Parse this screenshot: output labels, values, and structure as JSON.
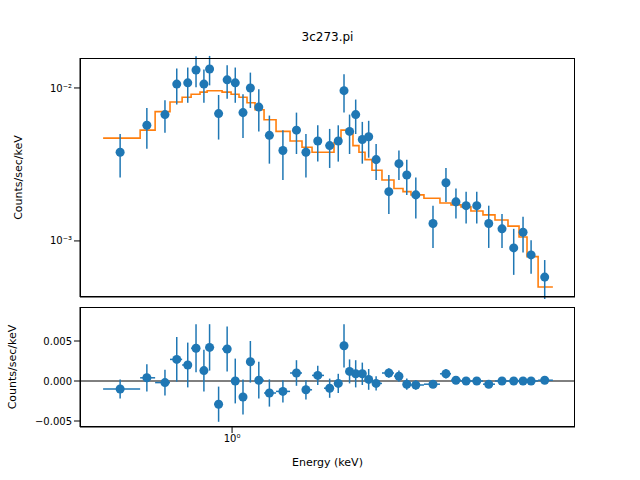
{
  "chart_data": [
    {
      "type": "scatter",
      "title": "3c273.pi",
      "y_label": "Counts/sec/keV",
      "log": true,
      "tick_labels": "y",
      "xlim": [
        0.39,
        8.36
      ],
      "ylim": [
        0.00043,
        0.0157
      ],
      "xticks": [
        {
          "value": 1,
          "label": "10⁰"
        }
      ],
      "yticks": [
        {
          "value": 0.001,
          "label": "10⁻³"
        },
        {
          "value": 0.01,
          "label": "10⁻²"
        }
      ],
      "x": [
        0.5,
        0.59,
        0.66,
        0.71,
        0.76,
        0.8,
        0.84,
        0.87,
        0.92,
        0.97,
        1.02,
        1.07,
        1.12,
        1.18,
        1.26,
        1.37,
        1.49,
        1.58,
        1.7,
        1.83,
        1.93,
        2.0,
        2.07,
        2.15,
        2.24,
        2.33,
        2.44,
        2.64,
        2.81,
        2.95,
        3.12,
        3.47,
        3.76,
        4.0,
        4.26,
        4.55,
        4.9,
        5.32,
        5.72,
        6.06,
        6.37,
        6.93
      ],
      "series": [
        {
          "type": "scatter",
          "color": "#1f77b4",
          "marker": "circle",
          "values": [
            0.0038,
            0.0057,
            0.0067,
            0.0106,
            0.0108,
            0.0131,
            0.0106,
            0.0133,
            0.0068,
            0.0113,
            0.0108,
            0.0069,
            0.01,
            0.0075,
            0.0049,
            0.0039,
            0.0053,
            0.0038,
            0.0045,
            0.0042,
            0.0045,
            0.0096,
            0.0052,
            0.0067,
            0.0046,
            0.0048,
            0.0034,
            0.0021,
            0.0032,
            0.0027,
            0.002,
            0.0013,
            0.0024,
            0.0018,
            0.0017,
            0.0017,
            0.0013,
            0.0012,
            0.0009,
            0.00114,
            0.00081,
            0.00058
          ],
          "errors": [
            0.0012,
            0.0017,
            0.0016,
            0.0028,
            0.0028,
            0.003,
            0.0026,
            0.0029,
            0.0022,
            0.0028,
            0.0028,
            0.0022,
            0.0026,
            0.0023,
            0.0017,
            0.0014,
            0.0016,
            0.0012,
            0.0012,
            0.0012,
            0.0012,
            0.0027,
            0.0015,
            0.0017,
            0.0014,
            0.0013,
            0.0009,
            0.0006,
            0.0007,
            0.0007,
            0.0006,
            0.0004,
            0.0006,
            0.0004,
            0.0004,
            0.0004,
            0.0004,
            0.0003,
            0.0003,
            0.0003,
            0.0002,
            0.00017
          ]
        },
        {
          "type": "line",
          "line_style": "steps",
          "color": "#ff7f0e",
          "bin_edges": [
            0.45,
            0.566,
            0.621,
            0.681,
            0.734,
            0.776,
            0.82,
            0.857,
            0.895,
            0.94,
            0.994,
            1.044,
            1.097,
            1.153,
            1.219,
            1.313,
            1.432,
            1.542,
            1.641,
            1.767,
            1.88,
            1.963,
            2.037,
            2.114,
            2.194,
            2.278,
            2.378,
            2.53,
            2.725,
            2.882,
            3.028,
            3.281,
            3.623,
            3.879,
            4.128,
            4.388,
            4.729,
            5.094,
            5.521,
            5.912,
            6.211,
            6.653,
            7.29
          ],
          "values": [
            0.0047,
            0.0053,
            0.007,
            0.0081,
            0.0087,
            0.0091,
            0.0094,
            0.0096,
            0.0096,
            0.0094,
            0.0091,
            0.0087,
            0.008,
            0.0072,
            0.0062,
            0.0052,
            0.0045,
            0.0041,
            0.0038,
            0.0038,
            0.0044,
            0.0053,
            0.0051,
            0.0042,
            0.0038,
            0.0034,
            0.0029,
            0.0025,
            0.0022,
            0.0021,
            0.002,
            0.0019,
            0.00177,
            0.00172,
            0.00167,
            0.00157,
            0.00148,
            0.00137,
            0.00125,
            0.00106,
            0.00079,
            0.0005
          ]
        }
      ]
    },
    {
      "type": "scatter",
      "x_label": "Energy (keV)",
      "y_label": "Counts/sec/keV",
      "log": "x",
      "xlim": [
        0.39,
        8.36
      ],
      "ylim": [
        -0.00575,
        0.00925
      ],
      "xticks": [
        {
          "value": 1,
          "label": "10⁰"
        }
      ],
      "yticks": [
        {
          "value": -0.005,
          "label": "−0.005"
        },
        {
          "value": 0,
          "label": "0.000"
        },
        {
          "value": 0.005,
          "label": "0.005"
        }
      ],
      "x": [
        0.5,
        0.59,
        0.66,
        0.71,
        0.76,
        0.8,
        0.84,
        0.87,
        0.92,
        0.97,
        1.02,
        1.07,
        1.12,
        1.18,
        1.26,
        1.37,
        1.49,
        1.58,
        1.7,
        1.83,
        1.93,
        2.0,
        2.07,
        2.15,
        2.24,
        2.33,
        2.44,
        2.64,
        2.81,
        2.95,
        3.12,
        3.47,
        3.76,
        4.0,
        4.26,
        4.55,
        4.9,
        5.32,
        5.72,
        6.06,
        6.37,
        6.93
      ],
      "bin_edges": [
        0.45,
        0.566,
        0.621,
        0.681,
        0.734,
        0.776,
        0.82,
        0.857,
        0.895,
        0.94,
        0.994,
        1.044,
        1.097,
        1.153,
        1.219,
        1.313,
        1.432,
        1.542,
        1.641,
        1.767,
        1.88,
        1.963,
        2.037,
        2.114,
        2.194,
        2.278,
        2.378,
        2.53,
        2.725,
        2.882,
        3.028,
        3.281,
        3.623,
        3.879,
        4.128,
        4.388,
        4.729,
        5.094,
        5.521,
        5.912,
        6.211,
        6.653,
        7.29
      ],
      "series": [
        {
          "type": "scatter",
          "color": "#1f77b4",
          "marker": "circle",
          "values": [
            -0.001,
            0.0004,
            -0.0002,
            0.0027,
            0.002,
            0.0041,
            0.0013,
            0.0042,
            -0.0029,
            0.004,
            0.0,
            -0.002,
            0.0024,
            0.0001,
            -0.0015,
            -0.0013,
            0.001,
            -0.0011,
            0.0007,
            -0.0009,
            -0.0003,
            0.0044,
            0.0012,
            0.0009,
            0.0009,
            0.0002,
            -0.0003,
            0.001,
            0.0006,
            -0.0004,
            -0.0005,
            -0.0004,
            0.0009,
            0.0001,
            0.0,
            0.0,
            -0.0004,
            0.0,
            0.0,
            0.0,
            0.0,
            0.0001
          ],
          "errors": [
            0.0012,
            0.0017,
            0.0016,
            0.0028,
            0.0028,
            0.003,
            0.0026,
            0.0029,
            0.0022,
            0.0028,
            0.0028,
            0.0022,
            0.0026,
            0.0023,
            0.0017,
            0.0014,
            0.0016,
            0.0012,
            0.0012,
            0.0012,
            0.0012,
            0.0027,
            0.0015,
            0.0017,
            0.0014,
            0.0013,
            0.0009,
            0.0006,
            0.0007,
            0.0007,
            0.0006,
            0.0004,
            0.0006,
            0.0004,
            0.0004,
            0.0004,
            0.0004,
            0.0003,
            0.0003,
            0.0003,
            0.0002,
            0.00017
          ]
        }
      ]
    }
  ]
}
